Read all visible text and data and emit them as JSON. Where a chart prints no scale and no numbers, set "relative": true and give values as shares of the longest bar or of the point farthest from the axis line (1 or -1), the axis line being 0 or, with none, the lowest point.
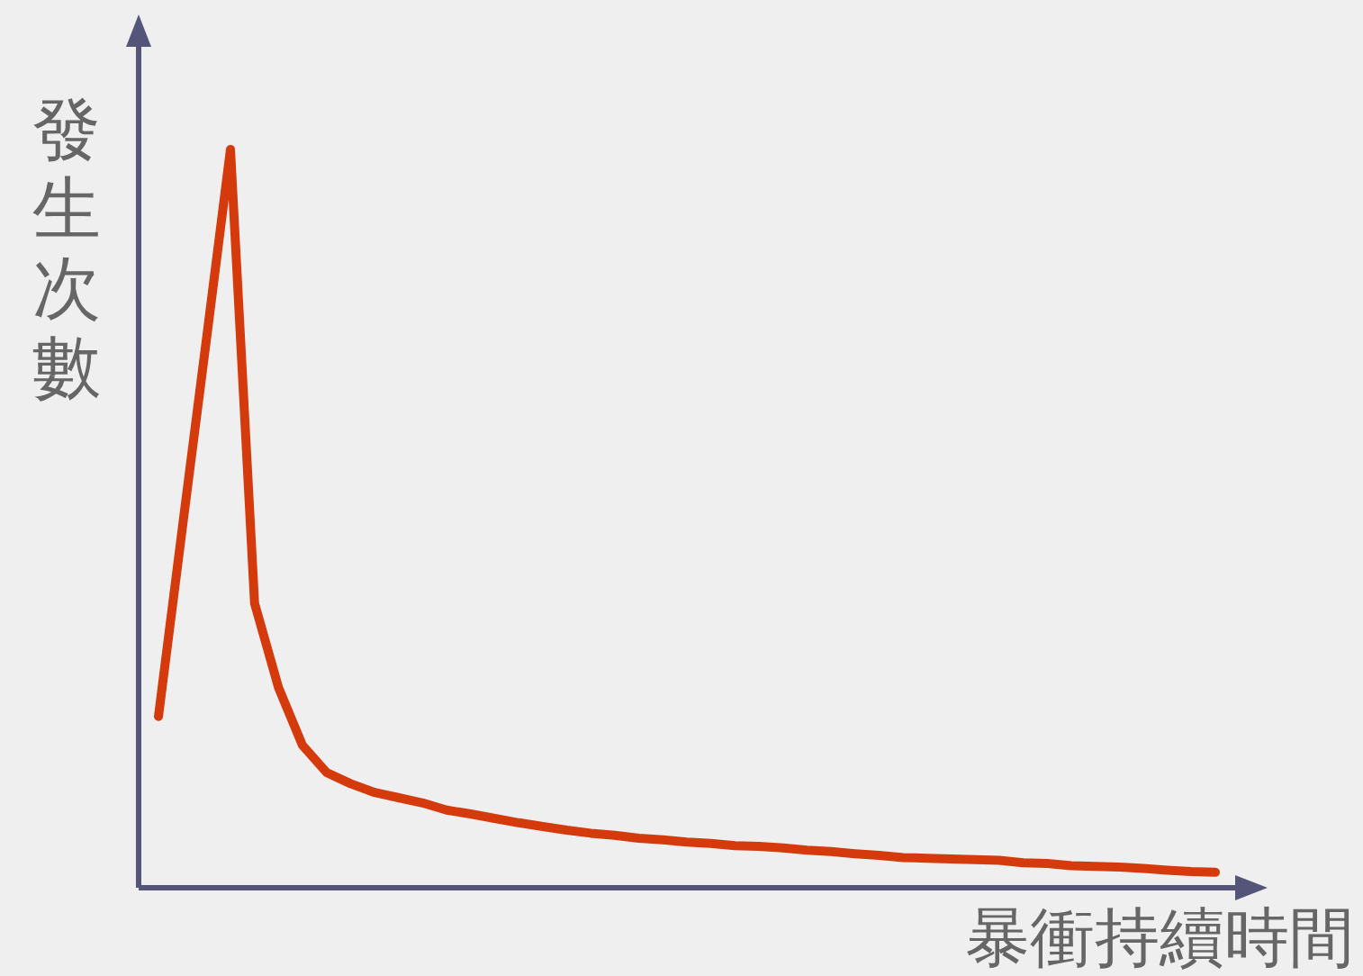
{
  "chart_data": {
    "type": "line",
    "relative": true,
    "xlabel": "暴衝持續時間",
    "ylabel": "發生次數",
    "categories": [
      null,
      null,
      null,
      null,
      null,
      null,
      null,
      null,
      null,
      null,
      null,
      null,
      null,
      null,
      null,
      null,
      null,
      null,
      null,
      null,
      null,
      null,
      null,
      null,
      null,
      null,
      null,
      null,
      null,
      null,
      null,
      null,
      null,
      null,
      null,
      null,
      null,
      null,
      null,
      null,
      null,
      null,
      null,
      null,
      null
    ],
    "marker": "none",
    "line_style": "solid",
    "series": [
      {
        "color": "#d43a0c",
        "values": [
          0.232,
          0.488,
          0.744,
          1,
          0.385,
          0.271,
          0.193,
          0.156,
          0.141,
          0.129,
          0.122,
          0.115,
          0.105,
          0.1,
          0.094,
          0.088,
          0.083,
          0.078,
          0.074,
          0.071,
          0.067,
          0.065,
          0.062,
          0.06,
          0.057,
          0.056,
          0.054,
          0.051,
          0.049,
          0.046,
          0.044,
          0.041,
          0.04,
          0.039,
          0.038,
          0.037,
          0.034,
          0.033,
          0.03,
          0.029,
          0.028,
          0.026,
          0.024,
          0.022,
          0.021
        ]
      }
    ]
  }
}
